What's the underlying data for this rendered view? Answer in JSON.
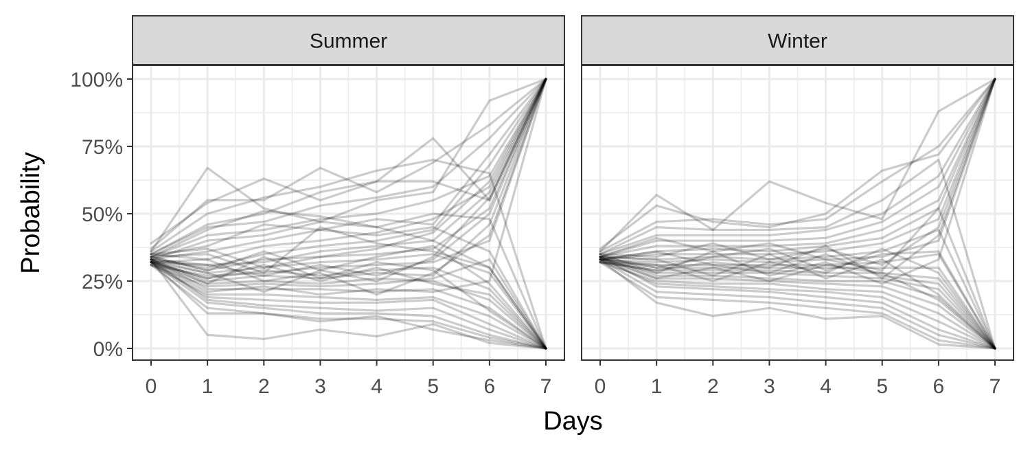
{
  "chart_data": {
    "type": "line",
    "x_axis": {
      "label": "Days",
      "range": [
        0,
        7
      ],
      "ticks": [
        0,
        1,
        2,
        3,
        4,
        5,
        6,
        7
      ],
      "tick_labels": [
        "0",
        "1",
        "2",
        "3",
        "4",
        "5",
        "6",
        "7"
      ]
    },
    "y_axis": {
      "label": "Probability",
      "range": [
        0,
        1
      ],
      "ticks": [
        0,
        0.25,
        0.5,
        0.75,
        1
      ],
      "tick_labels": [
        "0%",
        "25%",
        "50%",
        "75%",
        "100%"
      ]
    },
    "grid": true,
    "legend": "none",
    "line_color": "#000000",
    "line_opacity": 0.2,
    "panel_strip_color": "#d9d9d9",
    "panels": [
      {
        "label": "Summer",
        "x": [
          0,
          1,
          2,
          3,
          4,
          5,
          6,
          7
        ],
        "series": [
          {
            "values": [
              0.36,
              0.67,
              0.52,
              0.47,
              0.55,
              0.58,
              0.92,
              1.0
            ]
          },
          {
            "values": [
              0.39,
              0.54,
              0.63,
              0.55,
              0.62,
              0.78,
              0.55,
              1.0
            ]
          },
          {
            "values": [
              0.37,
              0.55,
              0.55,
              0.67,
              0.58,
              0.69,
              0.83,
              1.0
            ]
          },
          {
            "values": [
              0.36,
              0.5,
              0.56,
              0.6,
              0.66,
              0.7,
              0.65,
              0.0
            ]
          },
          {
            "values": [
              0.35,
              0.46,
              0.5,
              0.58,
              0.62,
              0.62,
              0.55,
              1.0
            ]
          },
          {
            "values": [
              0.35,
              0.45,
              0.47,
              0.53,
              0.56,
              0.6,
              0.78,
              1.0
            ]
          },
          {
            "values": [
              0.34,
              0.42,
              0.44,
              0.48,
              0.5,
              0.55,
              0.64,
              1.0
            ]
          },
          {
            "values": [
              0.33,
              0.4,
              0.42,
              0.47,
              0.45,
              0.5,
              0.48,
              0.0
            ]
          },
          {
            "values": [
              0.34,
              0.38,
              0.46,
              0.44,
              0.48,
              0.46,
              0.72,
              1.0
            ]
          },
          {
            "values": [
              0.33,
              0.36,
              0.4,
              0.44,
              0.42,
              0.45,
              0.36,
              0.0
            ]
          },
          {
            "values": [
              0.32,
              0.33,
              0.38,
              0.4,
              0.43,
              0.48,
              0.6,
              1.0
            ]
          },
          {
            "values": [
              0.33,
              0.3,
              0.35,
              0.38,
              0.4,
              0.44,
              0.68,
              1.0
            ]
          },
          {
            "values": [
              0.32,
              0.31,
              0.32,
              0.36,
              0.38,
              0.4,
              0.3,
              0.0
            ]
          },
          {
            "values": [
              0.34,
              0.29,
              0.33,
              0.34,
              0.35,
              0.37,
              0.52,
              1.0
            ]
          },
          {
            "values": [
              0.33,
              0.28,
              0.3,
              0.32,
              0.33,
              0.35,
              0.28,
              0.0
            ]
          },
          {
            "values": [
              0.31,
              0.27,
              0.28,
              0.3,
              0.31,
              0.32,
              0.4,
              1.0
            ]
          },
          {
            "values": [
              0.32,
              0.26,
              0.29,
              0.27,
              0.29,
              0.3,
              0.22,
              0.0
            ]
          },
          {
            "values": [
              0.33,
              0.25,
              0.27,
              0.26,
              0.28,
              0.27,
              0.46,
              1.0
            ]
          },
          {
            "values": [
              0.32,
              0.24,
              0.25,
              0.24,
              0.26,
              0.25,
              0.18,
              0.0
            ]
          },
          {
            "values": [
              0.31,
              0.23,
              0.24,
              0.23,
              0.24,
              0.26,
              0.33,
              0.0
            ]
          },
          {
            "values": [
              0.33,
              0.22,
              0.22,
              0.22,
              0.21,
              0.22,
              0.15,
              0.0
            ]
          },
          {
            "values": [
              0.32,
              0.21,
              0.23,
              0.2,
              0.22,
              0.21,
              0.25,
              1.0
            ]
          },
          {
            "values": [
              0.31,
              0.2,
              0.2,
              0.19,
              0.18,
              0.19,
              0.12,
              0.0
            ]
          },
          {
            "values": [
              0.32,
              0.19,
              0.18,
              0.17,
              0.17,
              0.18,
              0.09,
              0.0
            ]
          },
          {
            "values": [
              0.33,
              0.18,
              0.16,
              0.15,
              0.14,
              0.15,
              0.07,
              0.0
            ]
          },
          {
            "values": [
              0.32,
              0.17,
              0.15,
              0.13,
              0.13,
              0.12,
              0.05,
              0.0
            ]
          },
          {
            "values": [
              0.31,
              0.15,
              0.13,
              0.11,
              0.11,
              0.1,
              0.04,
              0.0
            ]
          },
          {
            "values": [
              0.32,
              0.13,
              0.13,
              0.1,
              0.12,
              0.07,
              0.03,
              0.0
            ]
          },
          {
            "values": [
              0.33,
              0.05,
              0.035,
              0.07,
              0.045,
              0.09,
              0.02,
              0.0
            ]
          },
          {
            "values": [
              0.34,
              0.44,
              0.51,
              0.49,
              0.45,
              0.4,
              0.58,
              1.0
            ]
          },
          {
            "values": [
              0.35,
              0.37,
              0.3,
              0.34,
              0.37,
              0.43,
              0.62,
              1.0
            ]
          },
          {
            "values": [
              0.34,
              0.29,
              0.36,
              0.29,
              0.34,
              0.38,
              0.24,
              0.0
            ]
          },
          {
            "values": [
              0.33,
              0.31,
              0.27,
              0.31,
              0.27,
              0.33,
              0.5,
              1.0
            ]
          },
          {
            "values": [
              0.32,
              0.26,
              0.31,
              0.25,
              0.3,
              0.24,
              0.2,
              0.0
            ]
          },
          {
            "values": [
              0.35,
              0.33,
              0.25,
              0.28,
              0.2,
              0.28,
              0.42,
              1.0
            ]
          },
          {
            "values": [
              0.34,
              0.35,
              0.28,
              0.45,
              0.39,
              0.36,
              0.3,
              0.0
            ]
          },
          {
            "values": [
              0.33,
              0.24,
              0.34,
              0.26,
              0.32,
              0.29,
              0.14,
              0.0
            ]
          },
          {
            "values": [
              0.32,
              0.28,
              0.21,
              0.29,
              0.25,
              0.34,
              0.56,
              1.0
            ]
          }
        ]
      },
      {
        "label": "Winter",
        "x": [
          0,
          1,
          2,
          3,
          4,
          5,
          6,
          7
        ],
        "series": [
          {
            "values": [
              0.36,
              0.57,
              0.44,
              0.62,
              0.54,
              0.48,
              0.88,
              1.0
            ]
          },
          {
            "values": [
              0.37,
              0.53,
              0.47,
              0.45,
              0.5,
              0.66,
              0.72,
              1.0
            ]
          },
          {
            "values": [
              0.36,
              0.47,
              0.48,
              0.46,
              0.48,
              0.62,
              0.75,
              1.0
            ]
          },
          {
            "values": [
              0.35,
              0.45,
              0.44,
              0.44,
              0.45,
              0.55,
              0.7,
              0.0
            ]
          },
          {
            "values": [
              0.35,
              0.42,
              0.42,
              0.42,
              0.44,
              0.5,
              0.64,
              1.0
            ]
          },
          {
            "values": [
              0.34,
              0.4,
              0.4,
              0.4,
              0.41,
              0.47,
              0.6,
              1.0
            ]
          },
          {
            "values": [
              0.34,
              0.38,
              0.38,
              0.38,
              0.39,
              0.44,
              0.55,
              1.0
            ]
          },
          {
            "values": [
              0.33,
              0.36,
              0.37,
              0.36,
              0.38,
              0.41,
              0.52,
              0.0
            ]
          },
          {
            "values": [
              0.33,
              0.35,
              0.35,
              0.35,
              0.36,
              0.39,
              0.48,
              1.0
            ]
          },
          {
            "values": [
              0.34,
              0.33,
              0.34,
              0.33,
              0.34,
              0.36,
              0.44,
              0.0
            ]
          },
          {
            "values": [
              0.33,
              0.32,
              0.33,
              0.32,
              0.33,
              0.34,
              0.4,
              1.0
            ]
          },
          {
            "values": [
              0.32,
              0.31,
              0.31,
              0.31,
              0.31,
              0.32,
              0.35,
              0.0
            ]
          },
          {
            "values": [
              0.33,
              0.3,
              0.3,
              0.3,
              0.3,
              0.3,
              0.3,
              0.0
            ]
          },
          {
            "values": [
              0.32,
              0.29,
              0.29,
              0.29,
              0.28,
              0.28,
              0.26,
              0.0
            ]
          },
          {
            "values": [
              0.33,
              0.28,
              0.28,
              0.28,
              0.27,
              0.26,
              0.22,
              0.0
            ]
          },
          {
            "values": [
              0.34,
              0.27,
              0.27,
              0.26,
              0.25,
              0.25,
              0.19,
              0.0
            ]
          },
          {
            "values": [
              0.33,
              0.26,
              0.26,
              0.25,
              0.24,
              0.23,
              0.16,
              0.0
            ]
          },
          {
            "values": [
              0.32,
              0.25,
              0.24,
              0.24,
              0.22,
              0.21,
              0.13,
              0.0
            ]
          },
          {
            "values": [
              0.33,
              0.24,
              0.23,
              0.22,
              0.21,
              0.19,
              0.1,
              0.0
            ]
          },
          {
            "values": [
              0.34,
              0.23,
              0.22,
              0.21,
              0.19,
              0.17,
              0.07,
              0.0
            ]
          },
          {
            "values": [
              0.33,
              0.21,
              0.2,
              0.19,
              0.17,
              0.15,
              0.05,
              0.0
            ]
          },
          {
            "values": [
              0.32,
              0.19,
              0.18,
              0.17,
              0.15,
              0.13,
              0.03,
              0.0
            ]
          },
          {
            "values": [
              0.33,
              0.17,
              0.12,
              0.15,
              0.11,
              0.12,
              0.015,
              0.0
            ]
          },
          {
            "values": [
              0.34,
              0.41,
              0.36,
              0.39,
              0.33,
              0.29,
              0.52,
              1.0
            ]
          },
          {
            "values": [
              0.35,
              0.34,
              0.39,
              0.33,
              0.37,
              0.31,
              0.45,
              1.0
            ]
          },
          {
            "values": [
              0.34,
              0.3,
              0.34,
              0.37,
              0.29,
              0.35,
              0.36,
              0.0
            ]
          },
          {
            "values": [
              0.33,
              0.36,
              0.31,
              0.28,
              0.35,
              0.27,
              0.24,
              0.0
            ]
          },
          {
            "values": [
              0.35,
              0.28,
              0.36,
              0.27,
              0.32,
              0.24,
              0.33,
              1.0
            ]
          },
          {
            "values": [
              0.34,
              0.33,
              0.27,
              0.35,
              0.26,
              0.33,
              0.2,
              0.0
            ]
          },
          {
            "values": [
              0.32,
              0.29,
              0.32,
              0.3,
              0.38,
              0.26,
              0.42,
              1.0
            ]
          },
          {
            "values": [
              0.33,
              0.31,
              0.25,
              0.32,
              0.28,
              0.37,
              0.28,
              0.0
            ]
          },
          {
            "values": [
              0.34,
              0.26,
              0.3,
              0.25,
              0.31,
              0.28,
              0.18,
              0.0
            ]
          }
        ]
      }
    ]
  }
}
